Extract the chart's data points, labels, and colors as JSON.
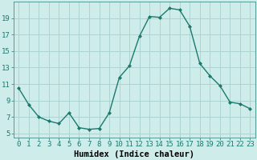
{
  "x": [
    0,
    1,
    2,
    3,
    4,
    5,
    6,
    7,
    8,
    9,
    10,
    11,
    12,
    13,
    14,
    15,
    16,
    17,
    18,
    19,
    20,
    21,
    22,
    23
  ],
  "y": [
    10.5,
    8.5,
    7.0,
    6.5,
    6.2,
    7.5,
    5.7,
    5.5,
    5.6,
    7.5,
    11.8,
    13.2,
    16.8,
    19.2,
    19.1,
    20.2,
    20.0,
    18.0,
    13.5,
    12.0,
    10.8,
    8.8,
    8.6,
    8.0
  ],
  "line_color": "#1a7a6e",
  "marker": "D",
  "marker_size": 2.0,
  "bg_color": "#ceecea",
  "grid_color": "#aed4d2",
  "xlabel": "Humidex (Indice chaleur)",
  "xlabel_fontsize": 7.5,
  "yticks": [
    5,
    7,
    9,
    11,
    13,
    15,
    17,
    19
  ],
  "ylim": [
    4.5,
    21.0
  ],
  "xlim": [
    -0.5,
    23.5
  ],
  "tick_fontsize": 6.5,
  "linewidth": 1.0
}
